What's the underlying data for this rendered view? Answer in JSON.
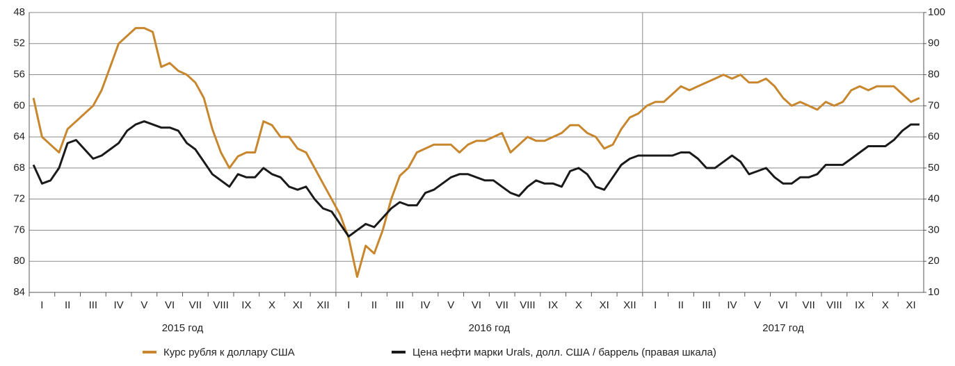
{
  "chart_data": {
    "type": "line",
    "categories": [
      null,
      "I",
      null,
      null,
      "II",
      null,
      null,
      "III",
      null,
      null,
      "IV",
      null,
      null,
      "V",
      null,
      null,
      "VI",
      null,
      null,
      "VII",
      null,
      null,
      "VIII",
      null,
      null,
      "IX",
      null,
      null,
      "X",
      null,
      null,
      "XI",
      null,
      null,
      "XII",
      null,
      null,
      "I",
      null,
      null,
      "II",
      null,
      null,
      "III",
      null,
      null,
      "IV",
      null,
      null,
      "V",
      null,
      null,
      "VI",
      null,
      null,
      "VII",
      null,
      null,
      "VIII",
      null,
      null,
      "IX",
      null,
      null,
      "X",
      null,
      null,
      "XI",
      null,
      null,
      "XII",
      null,
      null,
      "I",
      null,
      null,
      "II",
      null,
      null,
      "III",
      null,
      null,
      "IV",
      null,
      null,
      "V",
      null,
      null,
      "VI",
      null,
      null,
      "VII",
      null,
      null,
      "VIII",
      null,
      null,
      "IX",
      null,
      null,
      "X",
      null,
      null,
      "XI",
      null
    ],
    "years": [
      "2015 год",
      "2016 год",
      "2017 год"
    ],
    "series": [
      {
        "name": "Курс рубля к доллару США",
        "color": "#c8862d",
        "axis": "y",
        "values": [
          59,
          64,
          65,
          66,
          63,
          62,
          61,
          60,
          58,
          55,
          52,
          51,
          50,
          50,
          50.5,
          55,
          54.5,
          55.5,
          56,
          57,
          59,
          63,
          66,
          68,
          66.5,
          66,
          66,
          62,
          62.5,
          64,
          64,
          65.5,
          66,
          68,
          70,
          72,
          74,
          77,
          82,
          78,
          79,
          76,
          72,
          69,
          68,
          66,
          65.5,
          65,
          65,
          65,
          66,
          65,
          64.5,
          64.5,
          64,
          63.5,
          66,
          65,
          64,
          64.5,
          64.5,
          64,
          63.5,
          62.5,
          62.5,
          63.5,
          64,
          65.5,
          65,
          63,
          61.5,
          61,
          60,
          59.5,
          59.5,
          58.5,
          57.5,
          58,
          57.5,
          57,
          56.5,
          56,
          56.5,
          56,
          57,
          57,
          56.5,
          57.5,
          59,
          60,
          59.5,
          60,
          60.5,
          59.5,
          60,
          59.5,
          58,
          57.5,
          58,
          57.5,
          57.5,
          57.5,
          58.5,
          59.5,
          59
        ]
      },
      {
        "name": "Цена нефти марки Urals, долл. США / баррель (правая шкала)",
        "color": "#1a1a1a",
        "axis": "y2",
        "values": [
          51,
          45,
          46,
          50,
          58,
          59,
          56,
          53,
          54,
          56,
          58,
          62,
          64,
          65,
          64,
          63,
          63,
          62,
          58,
          56,
          52,
          48,
          46,
          44,
          48,
          47,
          47,
          50,
          48,
          47,
          44,
          43,
          44,
          40,
          37,
          36,
          32,
          28,
          30,
          32,
          31,
          34,
          37,
          39,
          38,
          38,
          42,
          43,
          45,
          47,
          48,
          48,
          47,
          46,
          46,
          44,
          42,
          41,
          44,
          46,
          45,
          45,
          44,
          49,
          50,
          48,
          44,
          43,
          47,
          51,
          53,
          54,
          54,
          54,
          54,
          54,
          55,
          55,
          53,
          50,
          50,
          52,
          54,
          52,
          48,
          49,
          50,
          47,
          45,
          45,
          47,
          47,
          48,
          51,
          51,
          51,
          53,
          55,
          57,
          57,
          57,
          59,
          62,
          64,
          64
        ]
      }
    ],
    "ylim": [
      48,
      84
    ],
    "inverted": true,
    "yticks": [
      48,
      52,
      56,
      60,
      64,
      68,
      72,
      76,
      80,
      84
    ],
    "y2lim": [
      10,
      100
    ],
    "y2ticks": [
      10,
      20,
      30,
      40,
      50,
      60,
      70,
      80,
      90,
      100
    ],
    "grid": true
  }
}
